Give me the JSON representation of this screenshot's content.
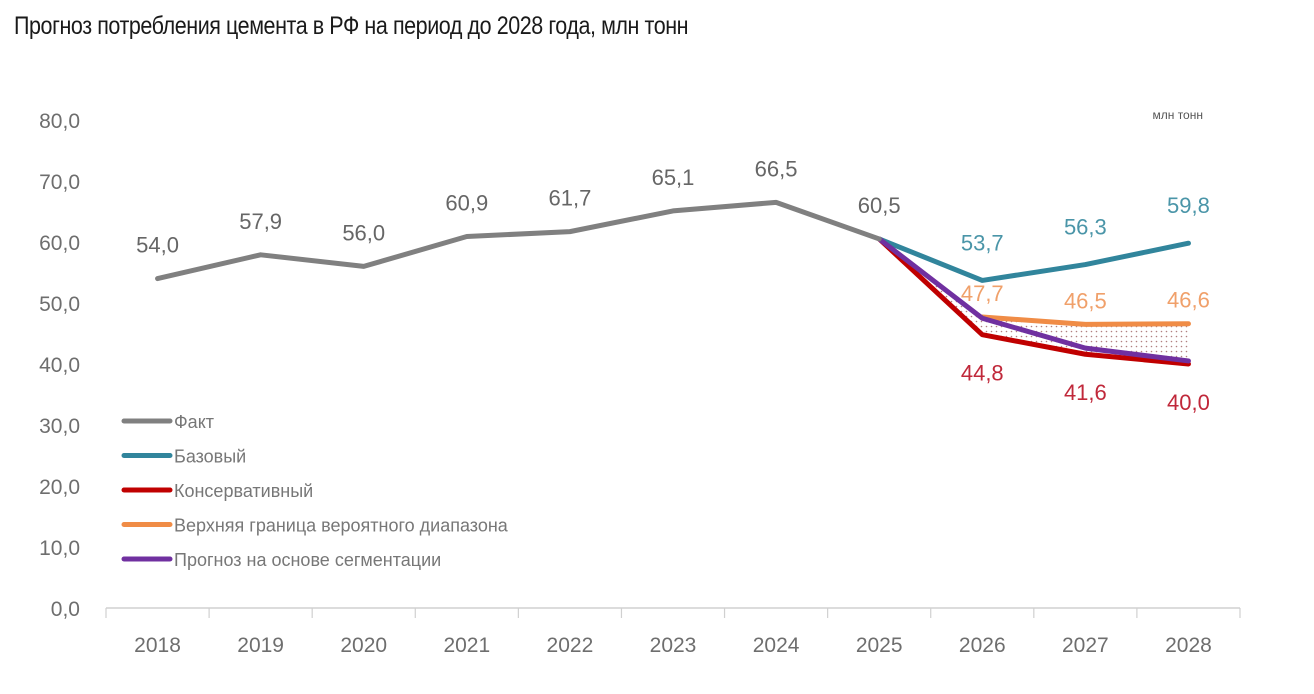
{
  "title": "Прогноз потребления цемента в РФ на период до 2028 года, млн тонн",
  "unit_label": "млн тонн",
  "chart_data": {
    "type": "line",
    "title": "Прогноз потребления цемента в РФ на период до 2028 года, млн тонн",
    "xlabel": "",
    "ylabel": "млн тонн",
    "ylim": [
      0,
      80
    ],
    "yticks": [
      "0,0",
      "10,0",
      "20,0",
      "30,0",
      "40,0",
      "50,0",
      "60,0",
      "70,0",
      "80,0"
    ],
    "ytick_values": [
      0,
      10,
      20,
      30,
      40,
      50,
      60,
      70,
      80
    ],
    "categories": [
      "2018",
      "2019",
      "2020",
      "2021",
      "2022",
      "2023",
      "2024",
      "2025",
      "2026",
      "2027",
      "2028"
    ],
    "grid": false,
    "legend_position": "bottom-left",
    "series": [
      {
        "name": "Факт",
        "color": "#808080",
        "values": [
          54.0,
          57.9,
          56.0,
          60.9,
          61.7,
          65.1,
          66.5,
          60.5,
          null,
          null,
          null
        ],
        "labels": [
          "54,0",
          "57,9",
          "56,0",
          "60,9",
          "61,7",
          "65,1",
          "66,5",
          "60,5",
          null,
          null,
          null
        ]
      },
      {
        "name": "Базовый",
        "color": "#31859c",
        "values": [
          null,
          null,
          null,
          null,
          null,
          null,
          null,
          60.5,
          53.7,
          56.3,
          59.8
        ],
        "labels": [
          null,
          null,
          null,
          null,
          null,
          null,
          null,
          null,
          "53,7",
          "56,3",
          "59,8"
        ]
      },
      {
        "name": "Консервативный",
        "color": "#c00000",
        "values": [
          null,
          null,
          null,
          null,
          null,
          null,
          null,
          60.5,
          44.8,
          41.6,
          40.0
        ],
        "labels": [
          null,
          null,
          null,
          null,
          null,
          null,
          null,
          null,
          "44,8",
          "41,6",
          "40,0"
        ]
      },
      {
        "name": "Верхняя граница вероятного диапазона",
        "color": "#f08c46",
        "values": [
          null,
          null,
          null,
          null,
          null,
          null,
          null,
          null,
          47.7,
          46.5,
          46.6
        ],
        "labels": [
          null,
          null,
          null,
          null,
          null,
          null,
          null,
          null,
          "47,7",
          "46,5",
          "46,6"
        ]
      },
      {
        "name": "Прогноз на основе сегментации",
        "color": "#7030a0",
        "values": [
          null,
          null,
          null,
          null,
          null,
          null,
          null,
          60.5,
          47.5,
          42.6,
          40.5
        ],
        "labels": [
          null,
          null,
          null,
          null,
          null,
          null,
          null,
          null,
          null,
          null,
          null
        ]
      }
    ],
    "annotations": [
      "Dotted shaded area between upper bound and conservative scenario (2026–2028)"
    ]
  }
}
